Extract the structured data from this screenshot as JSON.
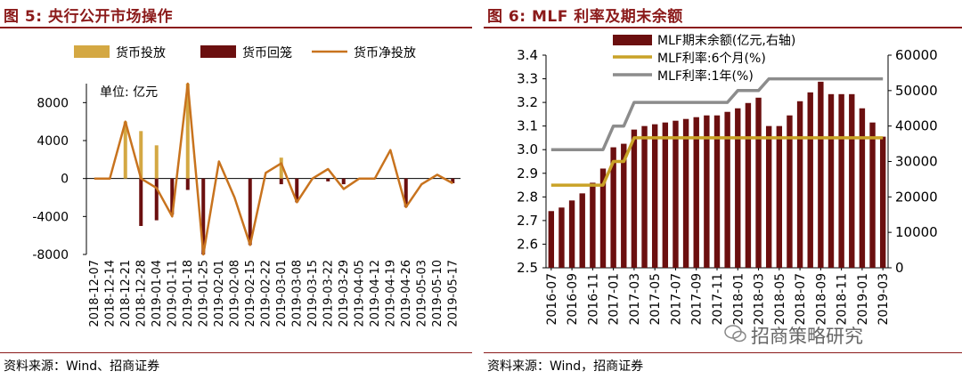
{
  "left": {
    "title": "图 5:  央行公开市场操作",
    "source": "资料来源：Wind、招商证券"
  },
  "right": {
    "title": "图 6:  MLF 利率及期末余额",
    "source": "资料来源：Wind，招商证券",
    "watermark": "招商策略研究"
  },
  "colors": {
    "title": "#8b1a1a",
    "gold": "#d4a843",
    "dark_red": "#6b0f0f",
    "orange": "#c8731e",
    "grey": "#8c8c8c",
    "mlf_gold": "#c9a227"
  },
  "chart_data": [
    {
      "type": "bar",
      "unit_label": "单位:  亿元",
      "categories": [
        "2018-12-07",
        "2018-12-14",
        "2018-12-21",
        "2018-12-28",
        "2019-01-04",
        "2019-01-11",
        "2019-01-18",
        "2019-01-25",
        "2019-02-01",
        "2019-02-08",
        "2019-02-15",
        "2019-02-22",
        "2019-03-01",
        "2019-03-08",
        "2019-03-15",
        "2019-03-22",
        "2019-03-29",
        "2019-04-05",
        "2019-04-12",
        "2019-04-19",
        "2019-04-26",
        "2019-05-03",
        "2019-05-10",
        "2019-05-17"
      ],
      "ylim": [
        -8000,
        10000
      ],
      "yticks": [
        8000,
        4000,
        0,
        -4000,
        -8000
      ],
      "ytick_labels": [
        "8000",
        "4000",
        "0",
        "-4000",
        "-8000"
      ],
      "legend_position": "top",
      "series": [
        {
          "name": "货币投放",
          "type": "bar",
          "color": "#d4a843",
          "values": [
            0,
            0,
            6000,
            5000,
            3500,
            0,
            10000,
            0,
            0,
            0,
            0,
            0,
            2200,
            0,
            0,
            0,
            0,
            0,
            0,
            0,
            0,
            0,
            0,
            0
          ]
        },
        {
          "name": "货币回笼",
          "type": "bar",
          "color": "#6b0f0f",
          "values": [
            0,
            0,
            0,
            -5000,
            -4400,
            -3800,
            -1200,
            -8000,
            0,
            0,
            -7000,
            0,
            -600,
            -2500,
            0,
            -300,
            -600,
            0,
            0,
            0,
            -3000,
            0,
            0,
            -500
          ]
        },
        {
          "name": "货币净投放",
          "type": "line",
          "color": "#c8731e",
          "values": [
            0,
            0,
            6000,
            0,
            -1000,
            -4000,
            10000,
            -8000,
            1800,
            -2000,
            -7000,
            600,
            1600,
            -2500,
            0,
            1000,
            -1100,
            0,
            0,
            3000,
            -3000,
            -600,
            400,
            -500
          ]
        }
      ]
    },
    {
      "type": "bar",
      "categories": [
        "2016-07",
        "2016-08",
        "2016-09",
        "2016-10",
        "2016-11",
        "2016-12",
        "2017-01",
        "2017-02",
        "2017-03",
        "2017-04",
        "2017-05",
        "2017-06",
        "2017-07",
        "2017-08",
        "2017-09",
        "2017-10",
        "2017-11",
        "2017-12",
        "2018-01",
        "2018-02",
        "2018-03",
        "2018-04",
        "2018-05",
        "2018-06",
        "2018-07",
        "2018-08",
        "2018-09",
        "2018-10",
        "2018-11",
        "2018-12",
        "2019-01",
        "2019-02",
        "2019-03"
      ],
      "xtick_labels": [
        "2016-07",
        "2016-09",
        "2016-11",
        "2017-01",
        "2017-03",
        "2017-05",
        "2017-07",
        "2017-09",
        "2017-11",
        "2018-01",
        "2018-03",
        "2018-05",
        "2018-07",
        "2018-09",
        "2018-11",
        "2019-01",
        "2019-03"
      ],
      "ylim_left": [
        2.5,
        3.4
      ],
      "yticks_left": [
        "2.5",
        "2.6",
        "2.7",
        "2.8",
        "2.9",
        "3.0",
        "3.1",
        "3.2",
        "3.3",
        "3.4"
      ],
      "ylim_right": [
        0,
        60000
      ],
      "yticks_right": [
        "0",
        "10000",
        "20000",
        "30000",
        "40000",
        "50000",
        "60000"
      ],
      "legend_position": "top-center",
      "series": [
        {
          "name": "MLF期末余额(亿元,右轴)",
          "type": "bar",
          "axis": "right",
          "color": "#6b0f0f",
          "values": [
            16000,
            17000,
            19000,
            21000,
            24000,
            28000,
            34000,
            35000,
            39000,
            40000,
            40500,
            41000,
            41500,
            42000,
            42500,
            43000,
            43000,
            44000,
            45000,
            46500,
            48000,
            40000,
            40000,
            43000,
            47000,
            49500,
            52500,
            49000,
            49000,
            49000,
            45000,
            41000,
            37000
          ]
        },
        {
          "name": "MLF利率:6个月(%)",
          "type": "line",
          "axis": "left",
          "color": "#c9a227",
          "values": [
            2.85,
            2.85,
            2.85,
            2.85,
            2.85,
            2.85,
            2.95,
            2.95,
            3.05,
            3.05,
            3.05,
            3.05,
            3.05,
            3.05,
            3.05,
            3.05,
            3.05,
            3.05,
            3.05,
            3.05,
            3.05,
            3.05,
            3.05,
            3.05,
            3.05,
            3.05,
            3.05,
            3.05,
            3.05,
            3.05,
            3.05,
            3.05,
            3.05
          ]
        },
        {
          "name": "MLF利率:1年(%)",
          "type": "line",
          "axis": "left",
          "color": "#8c8c8c",
          "values": [
            3.0,
            3.0,
            3.0,
            3.0,
            3.0,
            3.0,
            3.1,
            3.1,
            3.2,
            3.2,
            3.2,
            3.2,
            3.2,
            3.2,
            3.2,
            3.2,
            3.2,
            3.2,
            3.25,
            3.25,
            3.25,
            3.3,
            3.3,
            3.3,
            3.3,
            3.3,
            3.3,
            3.3,
            3.3,
            3.3,
            3.3,
            3.3,
            3.3
          ]
        }
      ]
    }
  ]
}
